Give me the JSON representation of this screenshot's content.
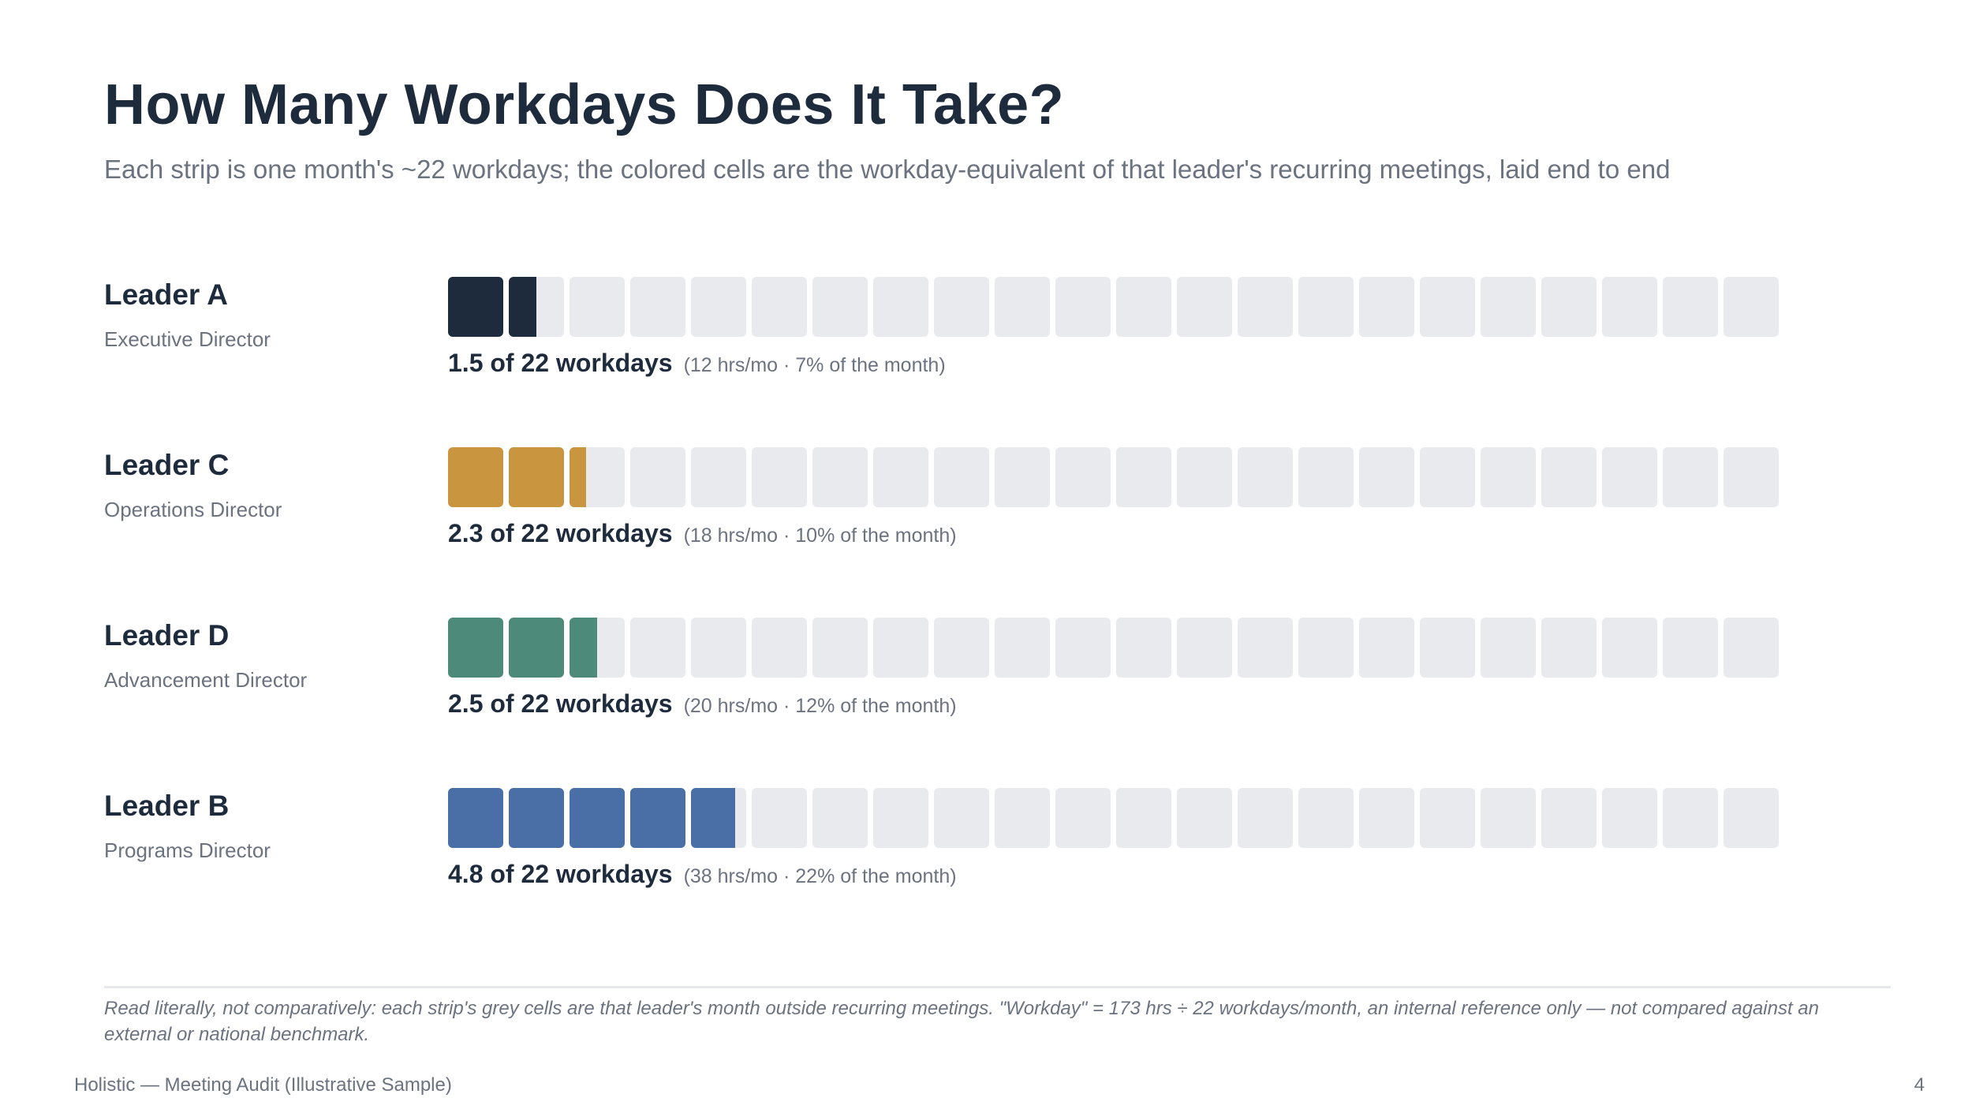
{
  "title": "How Many Workdays Does It Take?",
  "subtitle": "Each strip is one month's ~22 workdays; the colored cells are the workday-equivalent of that leader's recurring meetings, laid end to end",
  "chart_data": {
    "type": "bar",
    "total_cells": 22,
    "rows": [
      {
        "name": "Leader A",
        "role": "Executive Director",
        "workdays": 1.5,
        "color": "#1d2b3c",
        "stat_main": "1.5 of 22 workdays",
        "stat_detail": "(12 hrs/mo · 7% of the month)"
      },
      {
        "name": "Leader C",
        "role": "Operations Director",
        "workdays": 2.3,
        "color": "#c9963f",
        "stat_main": "2.3 of 22 workdays",
        "stat_detail": "(18 hrs/mo · 10% of the month)"
      },
      {
        "name": "Leader D",
        "role": "Advancement Director",
        "workdays": 2.5,
        "color": "#4e8a7a",
        "stat_main": "2.5 of 22 workdays",
        "stat_detail": "(20 hrs/mo · 12% of the month)"
      },
      {
        "name": "Leader B",
        "role": "Programs Director",
        "workdays": 4.8,
        "color": "#4a6fa6",
        "stat_main": "4.8 of 22 workdays",
        "stat_detail": "(38 hrs/mo · 22% of the month)"
      }
    ],
    "empty_color": "#e8eaed"
  },
  "footnote": "Read literally, not comparatively: each strip's grey cells are that leader's month outside recurring meetings. \"Workday\" = 173 hrs ÷ 22 workdays/month, an internal reference only — not compared against an external or national benchmark.",
  "footer": {
    "left": "Holistic — Meeting Audit (Illustrative Sample)",
    "page": "4"
  }
}
